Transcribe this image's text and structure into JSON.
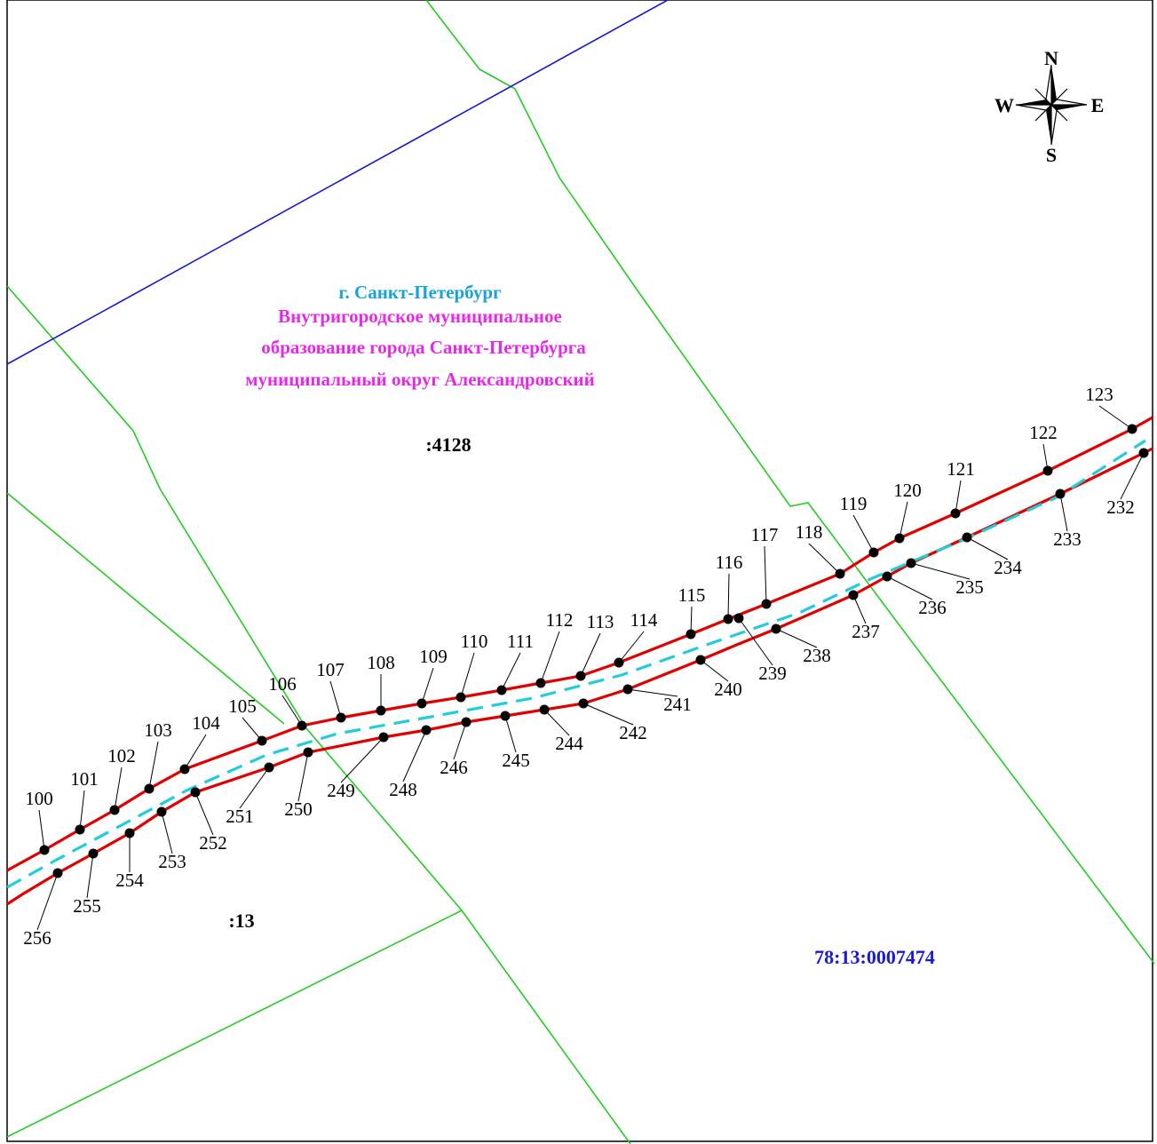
{
  "colors": {
    "boundary_red": "#e00000",
    "axis_cyan": "#22ccdd",
    "parcel_green": "#22cc22",
    "border_blue": "#1a1acc",
    "point_black": "#000000"
  },
  "compass": {
    "n": "N",
    "s": "S",
    "w": "W",
    "e": "E",
    "icon": "compass-rose-icon"
  },
  "place": {
    "city": "г. Санкт-Петербург",
    "lines": [
      "Внутригородское муниципальное",
      "образование города Санкт-Петербурга",
      "муниципальный округ Александровский"
    ]
  },
  "parcels": {
    "p4128": ":4128",
    "p13": ":13"
  },
  "quarter": "78:13:0007474",
  "upper_points": [
    {
      "label": "100"
    },
    {
      "label": "101"
    },
    {
      "label": "102"
    },
    {
      "label": "103"
    },
    {
      "label": "104"
    },
    {
      "label": "105"
    },
    {
      "label": "106"
    },
    {
      "label": "107"
    },
    {
      "label": "108"
    },
    {
      "label": "109"
    },
    {
      "label": "110"
    },
    {
      "label": "111"
    },
    {
      "label": "112"
    },
    {
      "label": "113"
    },
    {
      "label": "114"
    },
    {
      "label": "115"
    },
    {
      "label": "116"
    },
    {
      "label": "117"
    },
    {
      "label": "118"
    },
    {
      "label": "119"
    },
    {
      "label": "120"
    },
    {
      "label": "121"
    },
    {
      "label": "122"
    },
    {
      "label": "123"
    }
  ],
  "lower_points": [
    {
      "label": "232"
    },
    {
      "label": "233"
    },
    {
      "label": "234"
    },
    {
      "label": "235"
    },
    {
      "label": "236"
    },
    {
      "label": "237"
    },
    {
      "label": "238"
    },
    {
      "label": "239"
    },
    {
      "label": "240"
    },
    {
      "label": "241"
    },
    {
      "label": "242"
    },
    {
      "label": "244"
    },
    {
      "label": "245"
    },
    {
      "label": "246"
    },
    {
      "label": "248"
    },
    {
      "label": "249"
    },
    {
      "label": "250"
    },
    {
      "label": "251"
    },
    {
      "label": "252"
    },
    {
      "label": "253"
    },
    {
      "label": "254"
    },
    {
      "label": "255"
    },
    {
      "label": "256"
    }
  ]
}
